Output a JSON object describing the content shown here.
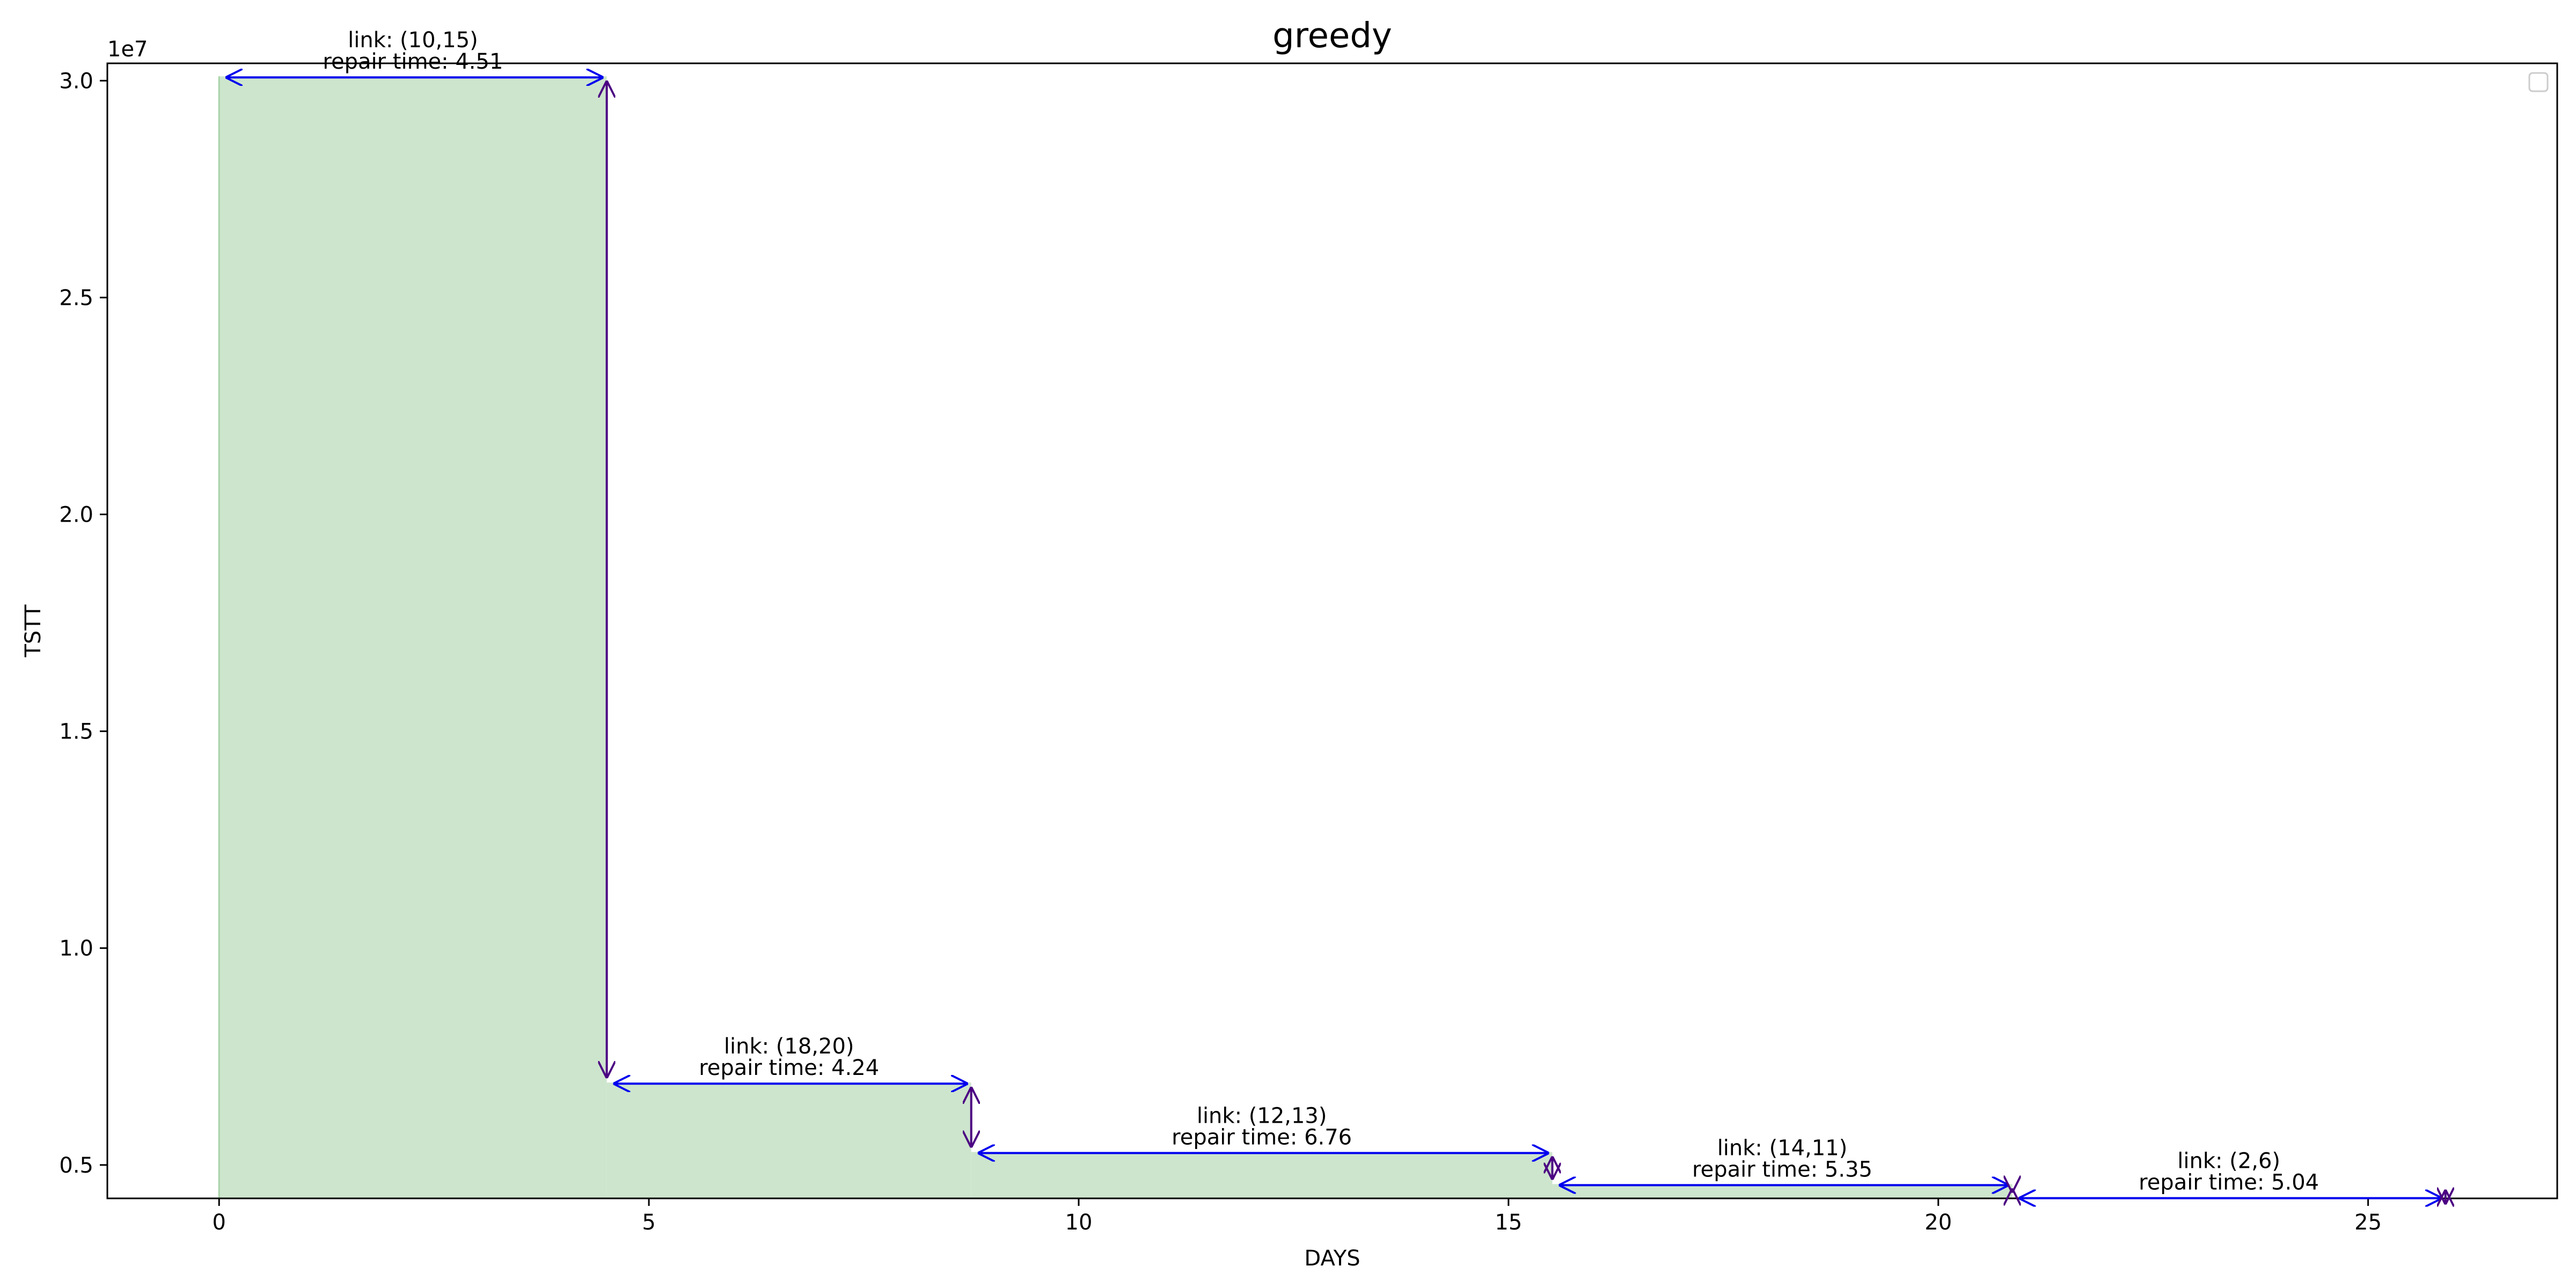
{
  "chart_data": {
    "type": "area",
    "title": "greedy",
    "xlabel": "DAYS",
    "ylabel": "TSTT",
    "y_offset_label": "1e7",
    "xlim": [
      -1.3,
      27.2
    ],
    "ylim": [
      4230000,
      30400000
    ],
    "x_ticks": [
      0,
      5,
      10,
      15,
      20,
      25
    ],
    "x_tick_labels": [
      "0",
      "5",
      "10",
      "15",
      "20",
      "25"
    ],
    "y_ticks": [
      5000000,
      10000000,
      15000000,
      20000000,
      25000000,
      30000000
    ],
    "y_tick_labels": [
      "0.5",
      "1.0",
      "1.5",
      "2.0",
      "2.5",
      "3.0"
    ],
    "grid": false,
    "legend": "top-right (empty)",
    "fill_color": "#cde5cd",
    "fill_edge_color": "#a8d4a8",
    "arrow_color": "#0000ee",
    "vertical_arrow_color": "#4b0082",
    "steps": [
      {
        "x_start": 0.0,
        "x_end": 4.51,
        "tstt": 30100000
      },
      {
        "x_start": 4.51,
        "x_end": 8.75,
        "tstt": 6900000
      },
      {
        "x_start": 8.75,
        "x_end": 15.51,
        "tstt": 5300000
      },
      {
        "x_start": 15.51,
        "x_end": 20.86,
        "tstt": 4560000
      },
      {
        "x_start": 20.86,
        "x_end": 25.9,
        "tstt": 4260000
      }
    ],
    "annotations": [
      {
        "link": "link: (10,15)",
        "repair": "repair time: 4.51"
      },
      {
        "link": "link: (18,20)",
        "repair": "repair time: 4.24"
      },
      {
        "link": "link: (12,13)",
        "repair": "repair time: 6.76"
      },
      {
        "link": "link: (14,11)",
        "repair": "repair time: 5.35"
      },
      {
        "link": "link: (2,6)",
        "repair": "repair time: 5.04"
      }
    ]
  }
}
